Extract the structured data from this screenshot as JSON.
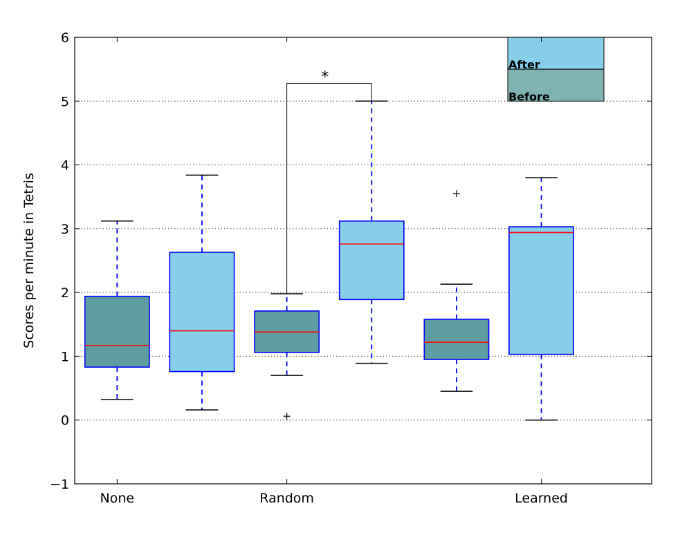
{
  "chart_data": {
    "type": "box",
    "title": "",
    "xlabel": "",
    "ylabel": "Scores per minute in Tetris",
    "ylim": [
      -1,
      6
    ],
    "yticks": [
      -1,
      0,
      1,
      2,
      3,
      4,
      5,
      6
    ],
    "ytick_labels": [
      "−1",
      "0",
      "1",
      "2",
      "3",
      "4",
      "5",
      "6"
    ],
    "grid": "horizontal dotted",
    "categories": [
      "None",
      "Random",
      "Learned"
    ],
    "series": [
      {
        "name": "Before",
        "color": "#5f9ea0"
      },
      {
        "name": "After",
        "color": "#87ceeb"
      }
    ],
    "boxes": [
      {
        "category": "None",
        "series": "Before",
        "whisker_low": 0.32,
        "q1": 0.83,
        "median": 1.17,
        "q3": 1.94,
        "whisker_high": 3.12,
        "outliers": []
      },
      {
        "category": "None",
        "series": "After",
        "whisker_low": 0.16,
        "q1": 0.76,
        "median": 1.4,
        "q3": 2.63,
        "whisker_high": 3.84,
        "outliers": []
      },
      {
        "category": "Random",
        "series": "Before",
        "whisker_low": 0.7,
        "q1": 1.06,
        "median": 1.38,
        "q3": 1.71,
        "whisker_high": 1.98,
        "outliers": [
          0.06
        ]
      },
      {
        "category": "Random",
        "series": "After",
        "whisker_low": 0.89,
        "q1": 1.89,
        "median": 2.76,
        "q3": 3.12,
        "whisker_high": 5.0,
        "outliers": []
      },
      {
        "category": "Learned",
        "series": "Before",
        "whisker_low": 0.45,
        "q1": 0.95,
        "median": 1.22,
        "q3": 1.58,
        "whisker_high": 2.13,
        "outliers": [
          3.55
        ]
      },
      {
        "category": "Learned",
        "series": "After",
        "whisker_low": 0.0,
        "q1": 1.03,
        "median": 2.94,
        "q3": 3.03,
        "whisker_high": 3.8,
        "outliers": []
      }
    ],
    "annotation": {
      "text": "*",
      "from_box": 2,
      "to_box": 3,
      "bracket_top": 5.28
    },
    "legend": {
      "placement": "top-right",
      "entries": [
        "After",
        "Before"
      ]
    }
  }
}
